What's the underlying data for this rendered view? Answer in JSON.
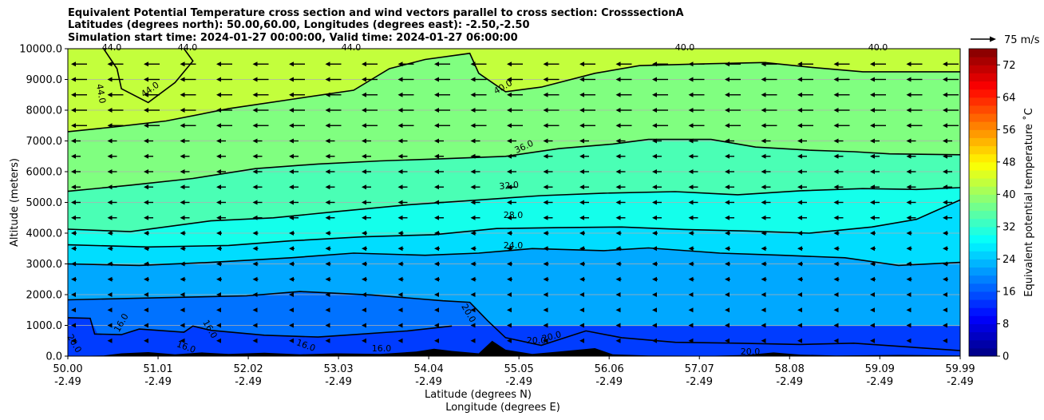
{
  "chart_data": {
    "type": "contourf",
    "title_lines": [
      "Equivalent Potential Temperature cross section and wind vectors parallel to cross section: CrosssectionA",
      "Latitudes (degrees north): 50.00,60.00, Longitudes (degrees east): -2.50,-2.50",
      "Simulation start time: 2024-01-27 00:00:00, Valid time: 2024-01-27 06:00:00"
    ],
    "ylabel": "Altitude (meters)",
    "xlabel_lines": [
      "Latitude (degrees N)",
      "Longitude (degrees E)"
    ],
    "ylim": [
      0,
      10000
    ],
    "xlim": [
      50.0,
      59.99
    ],
    "y_ticks": [
      {
        "value": 0,
        "label": "0.0"
      },
      {
        "value": 1000,
        "label": "1000.0"
      },
      {
        "value": 2000,
        "label": "2000.0"
      },
      {
        "value": 3000,
        "label": "3000.0"
      },
      {
        "value": 4000,
        "label": "4000.0"
      },
      {
        "value": 5000,
        "label": "5000.0"
      },
      {
        "value": 6000,
        "label": "6000.0"
      },
      {
        "value": 7000,
        "label": "7000.0"
      },
      {
        "value": 8000,
        "label": "8000.0"
      },
      {
        "value": 9000,
        "label": "9000.0"
      },
      {
        "value": 10000,
        "label": "10000.0"
      }
    ],
    "x_ticks": [
      {
        "lat": 50.0,
        "label_lat": "50.00",
        "label_lon": "-2.49"
      },
      {
        "lat": 51.01,
        "label_lat": "51.01",
        "label_lon": "-2.49"
      },
      {
        "lat": 52.02,
        "label_lat": "52.02",
        "label_lon": "-2.49"
      },
      {
        "lat": 53.03,
        "label_lat": "53.03",
        "label_lon": "-2.49"
      },
      {
        "lat": 54.04,
        "label_lat": "54.04",
        "label_lon": "-2.49"
      },
      {
        "lat": 55.05,
        "label_lat": "55.05",
        "label_lon": "-2.49"
      },
      {
        "lat": 56.06,
        "label_lat": "56.06",
        "label_lon": "-2.49"
      },
      {
        "lat": 57.07,
        "label_lat": "57.07",
        "label_lon": "-2.49"
      },
      {
        "lat": 58.08,
        "label_lat": "58.08",
        "label_lon": "-2.49"
      },
      {
        "lat": 59.09,
        "label_lat": "59.09",
        "label_lon": "-2.49"
      },
      {
        "lat": 59.99,
        "label_lat": "59.99",
        "label_lon": "-2.49"
      }
    ],
    "grid": "horizontal",
    "colorbar": {
      "label": "Equivalent potential temperature ˚C",
      "range": [
        0,
        76
      ],
      "ticks": [
        0,
        8,
        16,
        24,
        32,
        40,
        48,
        56,
        64,
        72
      ],
      "colormap": "jet"
    },
    "quiver_key": {
      "label": "75 m/s"
    },
    "contour_labels": [
      "44.0",
      "44.0",
      "44.0",
      "44.0",
      "44.0",
      "40.0",
      "40.0",
      "40.0",
      "36.0",
      "32.0",
      "28.0",
      "24.0",
      "20.0",
      "20.0",
      "20.0",
      "20.0",
      "16.0",
      "16.0",
      "16.0",
      "16.0",
      "16.0",
      "20.0"
    ],
    "contours": [
      {
        "level": 16,
        "points": [
          [
            50.0,
            1250
          ],
          [
            50.25,
            1230
          ],
          [
            50.3,
            720
          ],
          [
            50.6,
            700
          ],
          [
            50.8,
            880
          ],
          [
            51.3,
            780
          ],
          [
            51.4,
            980
          ],
          [
            51.6,
            840
          ],
          [
            52.2,
            680
          ],
          [
            52.8,
            620
          ],
          [
            53.2,
            700
          ],
          [
            53.8,
            820
          ],
          [
            54.3,
            980
          ]
        ]
      },
      {
        "level": 20,
        "points": [
          [
            50.0,
            1830
          ],
          [
            51.0,
            1900
          ],
          [
            52.0,
            1960
          ],
          [
            52.6,
            2100
          ],
          [
            53.4,
            1990
          ],
          [
            54.2,
            1800
          ],
          [
            54.5,
            1750
          ],
          [
            54.7,
            1150
          ],
          [
            54.9,
            600
          ],
          [
            55.3,
            350
          ],
          [
            55.8,
            820
          ],
          [
            56.2,
            600
          ],
          [
            56.8,
            450
          ],
          [
            57.5,
            420
          ],
          [
            58.2,
            380
          ],
          [
            58.8,
            420
          ],
          [
            59.3,
            320
          ],
          [
            59.99,
            180
          ]
        ]
      },
      {
        "level": 24,
        "points": [
          [
            50.0,
            3000
          ],
          [
            50.8,
            2950
          ],
          [
            51.6,
            3050
          ],
          [
            52.5,
            3200
          ],
          [
            53.2,
            3350
          ],
          [
            54.0,
            3280
          ],
          [
            54.6,
            3350
          ],
          [
            55.2,
            3500
          ],
          [
            56.0,
            3430
          ],
          [
            56.5,
            3520
          ],
          [
            57.3,
            3350
          ],
          [
            58.0,
            3280
          ],
          [
            58.7,
            3200
          ],
          [
            59.3,
            2950
          ],
          [
            59.99,
            3050
          ]
        ]
      },
      {
        "level": 28,
        "points": [
          [
            50.0,
            3620
          ],
          [
            50.9,
            3550
          ],
          [
            51.8,
            3600
          ],
          [
            52.5,
            3750
          ],
          [
            53.3,
            3880
          ],
          [
            54.1,
            3950
          ],
          [
            54.8,
            4150
          ],
          [
            55.5,
            4180
          ],
          [
            56.2,
            4200
          ],
          [
            56.9,
            4120
          ],
          [
            57.6,
            4070
          ],
          [
            58.3,
            4000
          ],
          [
            59.0,
            4200
          ],
          [
            59.5,
            4450
          ],
          [
            59.99,
            5080
          ]
        ]
      },
      {
        "level": 32,
        "points": [
          [
            50.0,
            4130
          ],
          [
            50.7,
            4050
          ],
          [
            51.6,
            4400
          ],
          [
            52.3,
            4500
          ],
          [
            53.0,
            4700
          ],
          [
            53.8,
            4920
          ],
          [
            54.6,
            5080
          ],
          [
            55.3,
            5220
          ],
          [
            56.0,
            5300
          ],
          [
            56.8,
            5350
          ],
          [
            57.5,
            5250
          ],
          [
            58.2,
            5380
          ],
          [
            58.9,
            5450
          ],
          [
            59.5,
            5420
          ],
          [
            59.99,
            5480
          ]
        ]
      },
      {
        "level": 36,
        "points": [
          [
            50.0,
            5360
          ],
          [
            50.7,
            5560
          ],
          [
            51.4,
            5780
          ],
          [
            52.1,
            6100
          ],
          [
            52.8,
            6250
          ],
          [
            53.5,
            6350
          ],
          [
            54.2,
            6420
          ],
          [
            54.9,
            6500
          ],
          [
            55.5,
            6750
          ],
          [
            56.1,
            6900
          ],
          [
            56.5,
            7050
          ],
          [
            57.2,
            7050
          ],
          [
            57.7,
            6800
          ],
          [
            58.3,
            6700
          ],
          [
            58.8,
            6650
          ],
          [
            59.2,
            6580
          ],
          [
            59.99,
            6550
          ]
        ]
      },
      {
        "level": 40,
        "points": [
          [
            50.0,
            7300
          ],
          [
            50.5,
            7450
          ],
          [
            51.1,
            7650
          ],
          [
            51.8,
            8050
          ],
          [
            52.5,
            8350
          ],
          [
            53.2,
            8650
          ],
          [
            53.6,
            9350
          ],
          [
            54.0,
            9650
          ],
          [
            54.5,
            9850
          ],
          [
            54.6,
            9200
          ],
          [
            54.9,
            8600
          ],
          [
            55.3,
            8750
          ],
          [
            55.9,
            9200
          ],
          [
            56.4,
            9450
          ],
          [
            57.0,
            9500
          ],
          [
            57.8,
            9550
          ],
          [
            58.3,
            9400
          ],
          [
            58.9,
            9250
          ],
          [
            59.99,
            9250
          ]
        ]
      },
      {
        "level": 44,
        "points": [
          [
            50.4,
            10000
          ],
          [
            50.55,
            9350
          ],
          [
            50.6,
            8700
          ],
          [
            50.9,
            8250
          ],
          [
            51.2,
            8900
          ],
          [
            51.4,
            9600
          ],
          [
            51.3,
            10000
          ]
        ]
      }
    ]
  }
}
